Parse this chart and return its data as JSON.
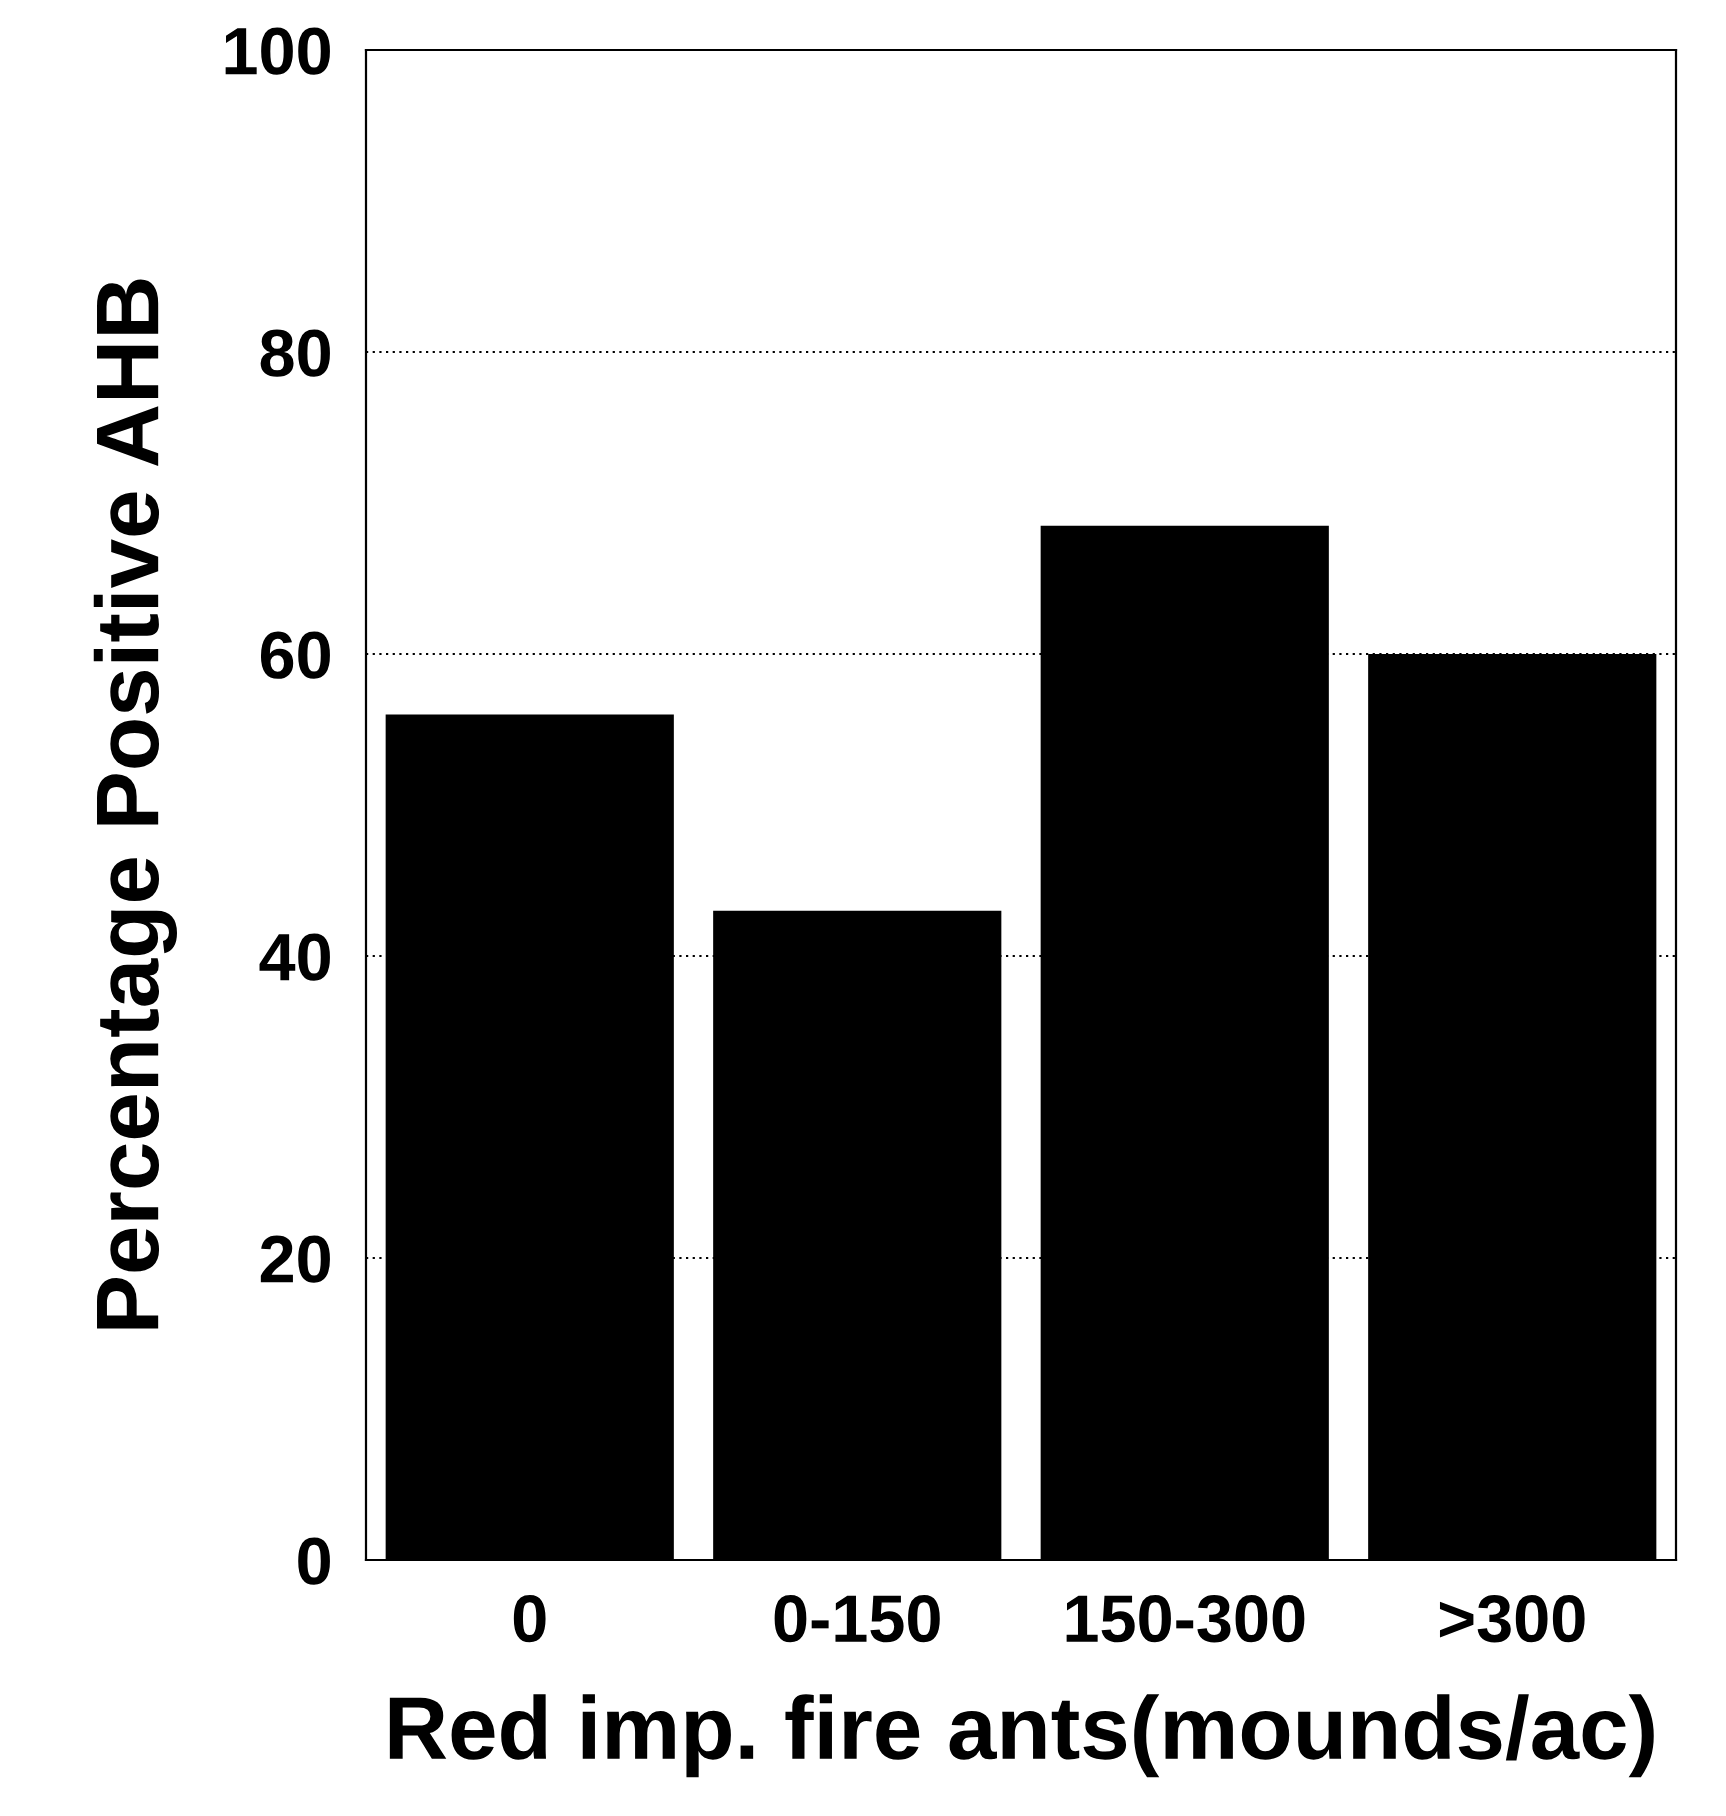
{
  "chart_data": {
    "type": "bar",
    "xlabel": "Red imp. fire ants(mounds/ac)",
    "ylabel": "Percentage Positive AHB",
    "categories": [
      "0",
      "0-150",
      "150-300",
      ">300"
    ],
    "values": [
      56,
      43,
      68.5,
      60
    ],
    "color": "#000000",
    "ylim": [
      0,
      100
    ],
    "yticks": [
      0,
      20,
      40,
      60,
      80,
      100
    ],
    "grid": "y"
  }
}
